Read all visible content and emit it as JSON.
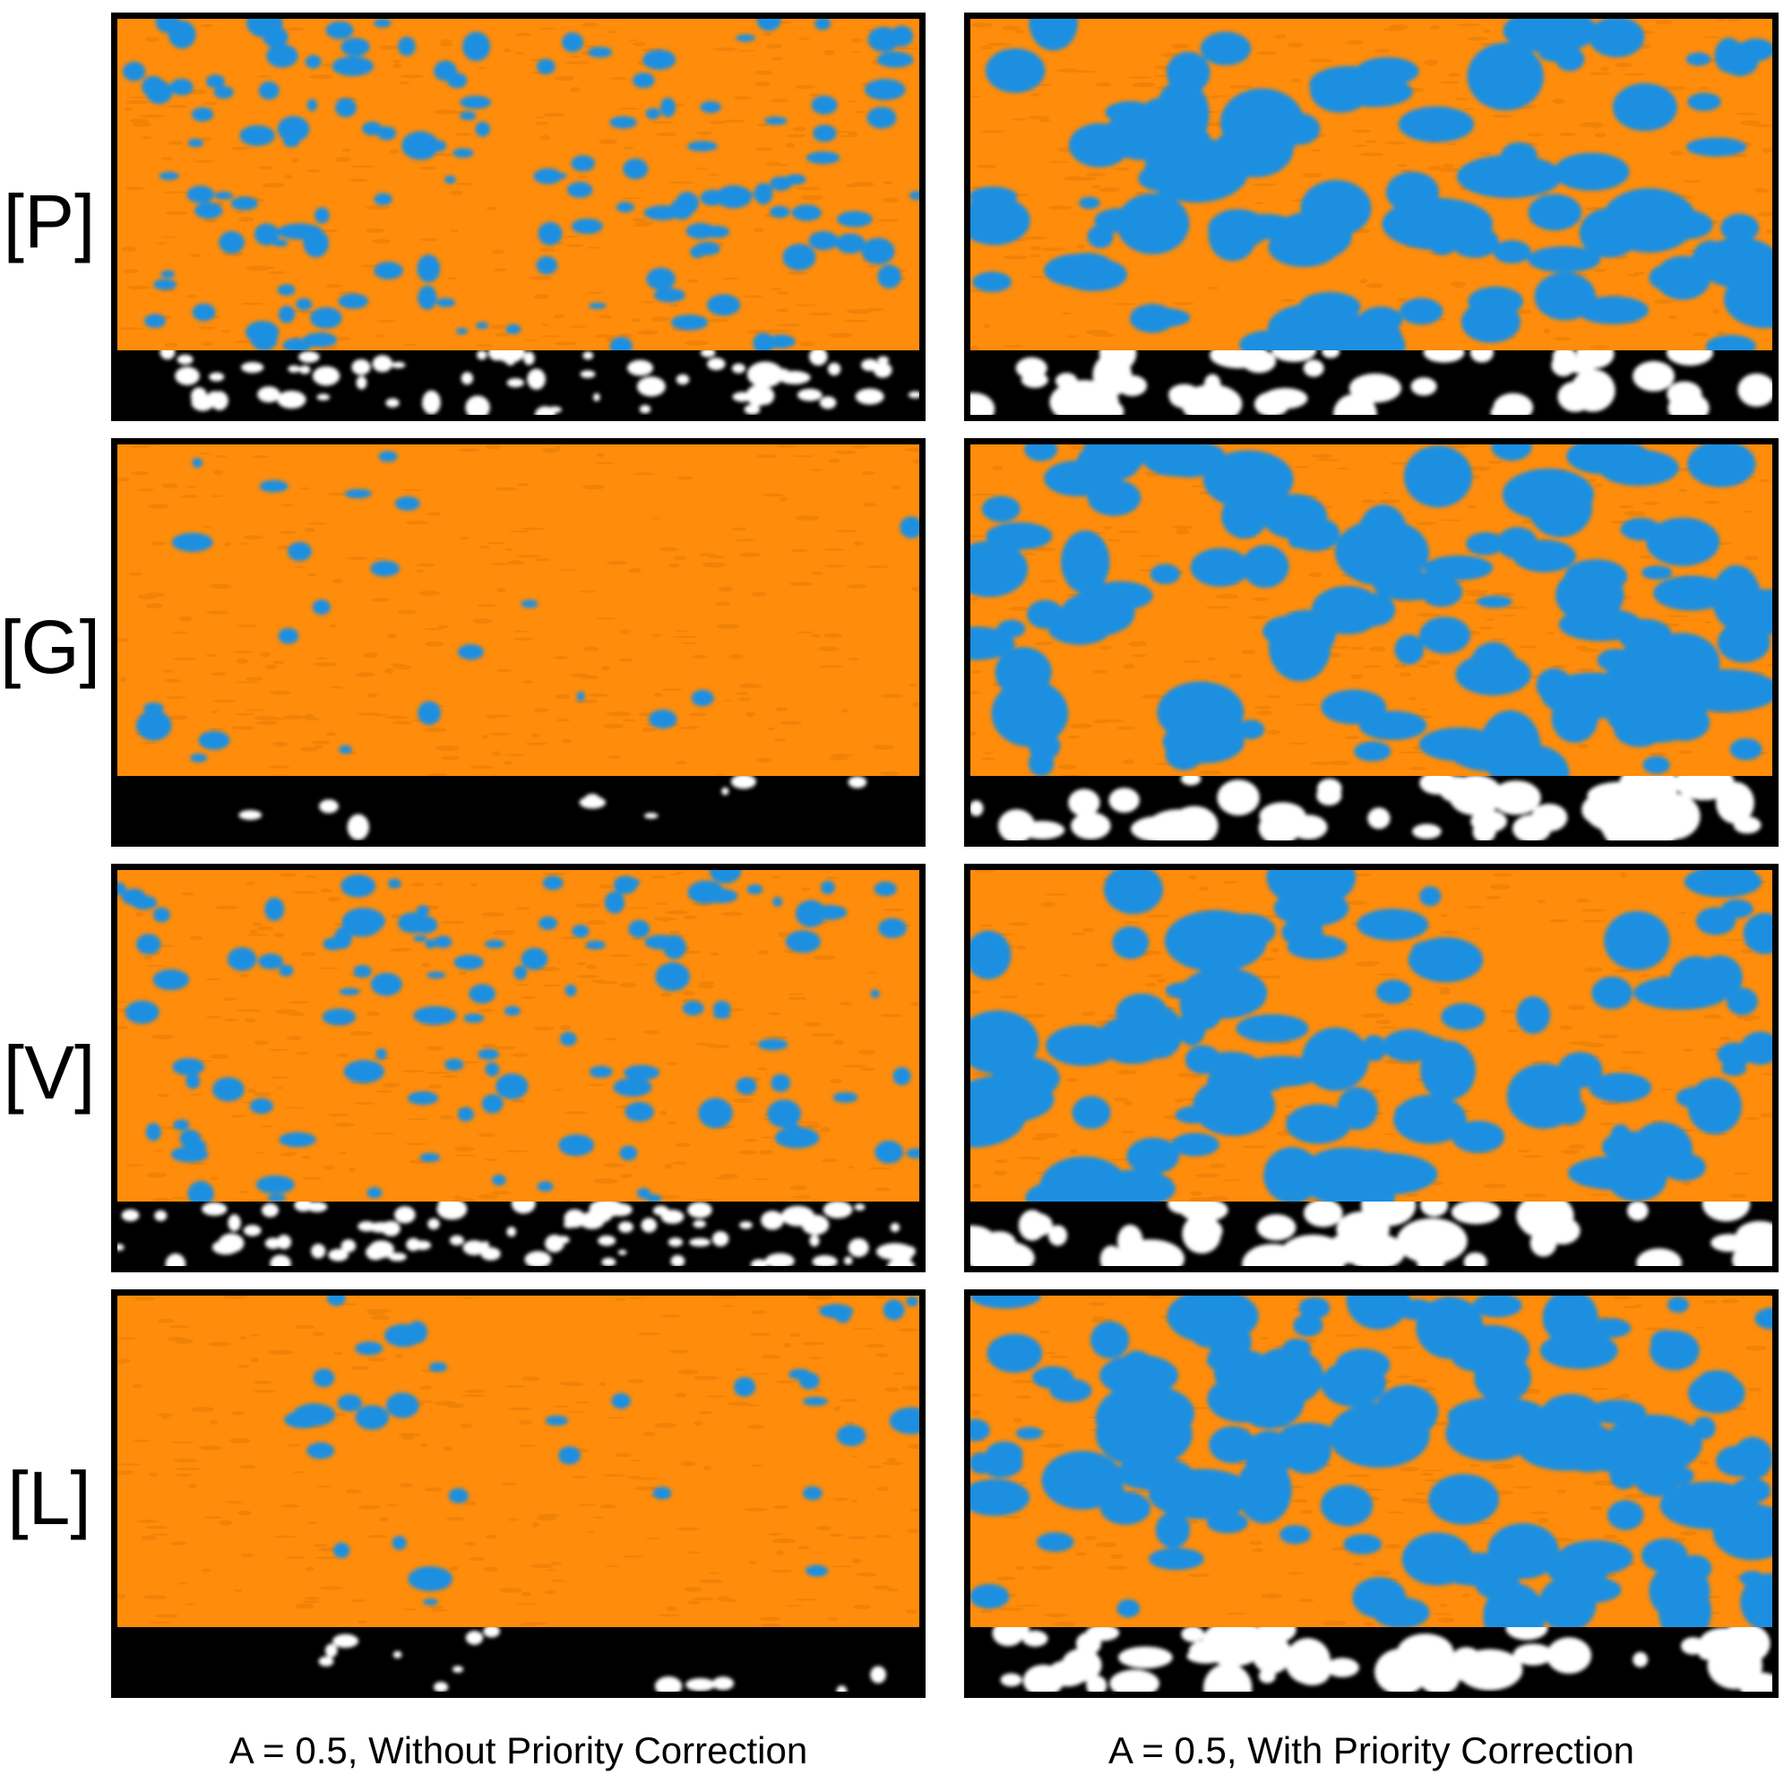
{
  "rows": [
    {
      "label": "[P]"
    },
    {
      "label": "[G]"
    },
    {
      "label": "[V]"
    },
    {
      "label": "[L]"
    }
  ],
  "captions": {
    "left": "A = 0.5, Without Priority Correction",
    "right": "A = 0.5, With Priority Correction"
  },
  "colors": {
    "orange": "#ff8c0a",
    "blue": "#1a8fe0",
    "mask_black": "#000000",
    "mask_white": "#ffffff"
  },
  "panels": [
    {
      "row": "[P]",
      "column": "without",
      "blue_fraction": 0.12,
      "mask_white_fraction": 0.2
    },
    {
      "row": "[P]",
      "column": "with",
      "blue_fraction": 0.45,
      "mask_white_fraction": 0.5
    },
    {
      "row": "[G]",
      "column": "without",
      "blue_fraction": 0.02,
      "mask_white_fraction": 0.03
    },
    {
      "row": "[G]",
      "column": "with",
      "blue_fraction": 0.5,
      "mask_white_fraction": 0.5
    },
    {
      "row": "[V]",
      "column": "without",
      "blue_fraction": 0.1,
      "mask_white_fraction": 0.25
    },
    {
      "row": "[V]",
      "column": "with",
      "blue_fraction": 0.45,
      "mask_white_fraction": 0.55
    },
    {
      "row": "[L]",
      "column": "without",
      "blue_fraction": 0.03,
      "mask_white_fraction": 0.04
    },
    {
      "row": "[L]",
      "column": "with",
      "blue_fraction": 0.55,
      "mask_white_fraction": 0.5
    }
  ]
}
